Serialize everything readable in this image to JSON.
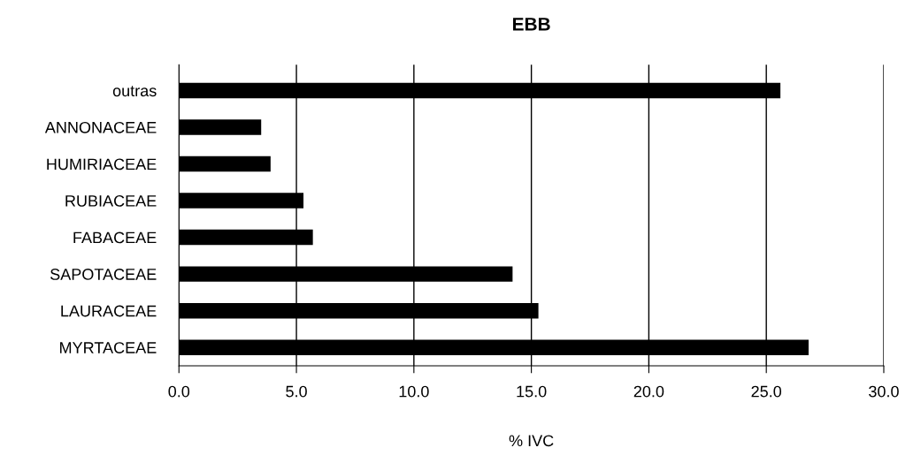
{
  "chart_data": {
    "type": "bar",
    "orientation": "horizontal",
    "title": "EBB",
    "xlabel": "% IVC",
    "categories": [
      "outras",
      "ANNONACEAE",
      "HUMIRIACEAE",
      "RUBIACEAE",
      "FABACEAE",
      "SAPOTACEAE",
      "LAURACEAE",
      "MYRTACEAE"
    ],
    "values": [
      25.6,
      3.5,
      3.9,
      5.3,
      5.7,
      14.2,
      15.3,
      26.8
    ],
    "color": "#000000",
    "xlim": [
      0,
      30
    ],
    "xticks": [
      {
        "value": 0,
        "label": "0.0"
      },
      {
        "value": 5,
        "label": "5.0"
      },
      {
        "value": 10,
        "label": "10.0"
      },
      {
        "value": 15,
        "label": "15.0"
      },
      {
        "value": 20,
        "label": "20.0"
      },
      {
        "value": 25,
        "label": "25.0"
      },
      {
        "value": 30,
        "label": "30.0"
      }
    ],
    "grid": "x"
  }
}
